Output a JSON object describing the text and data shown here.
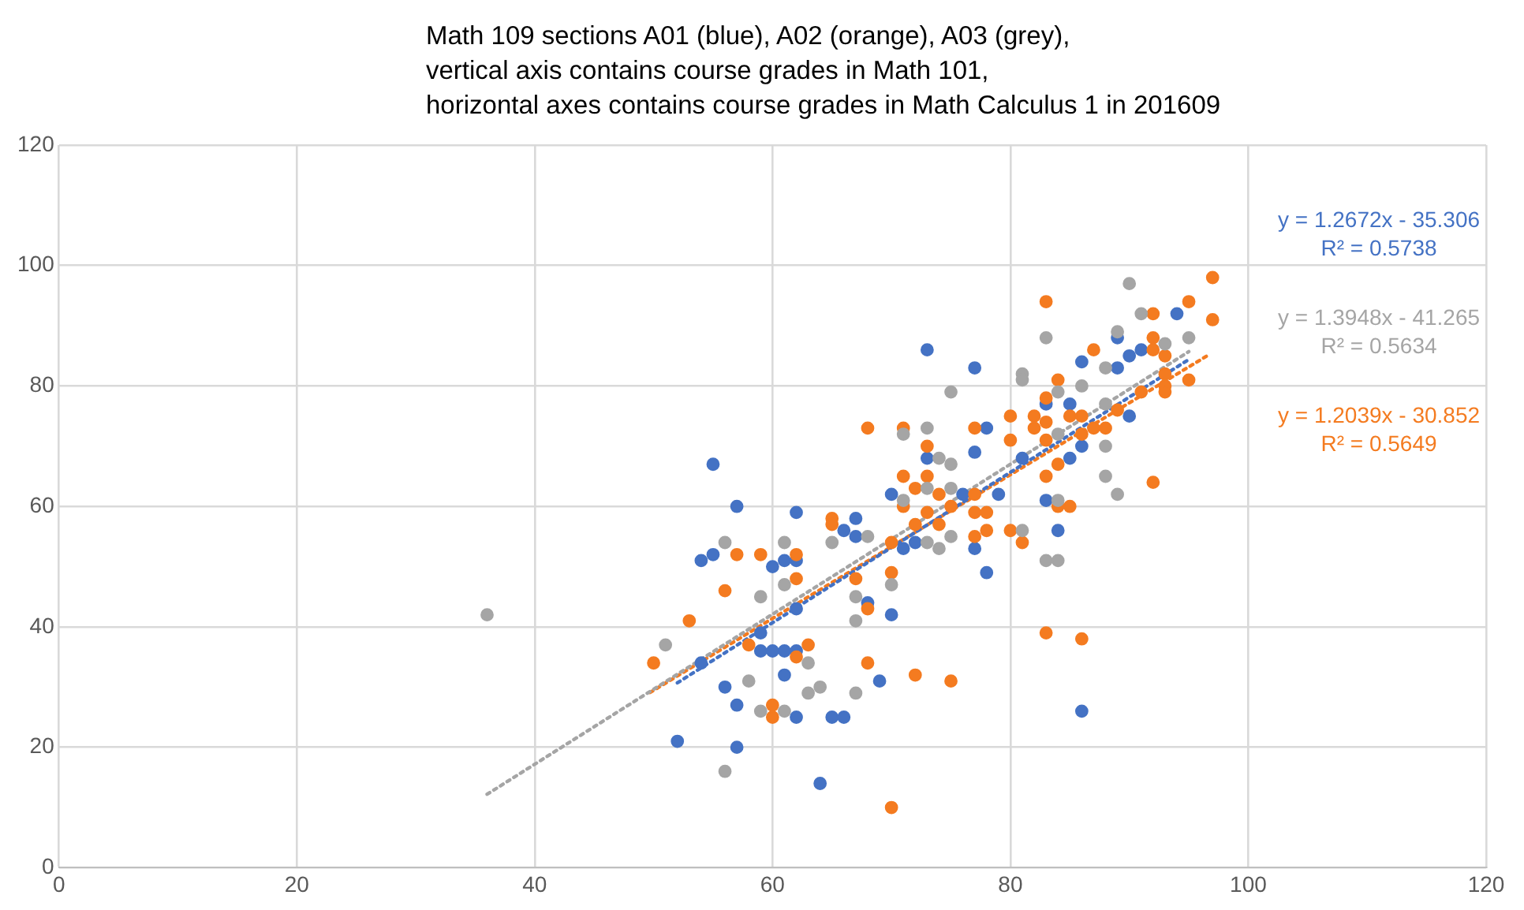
{
  "chart_data": {
    "type": "scatter",
    "title": "Math 109 sections A01 (blue), A02 (orange), A03 (grey),\nvertical axis contains course grades in Math 101,\nhorizontal axes contains course grades in Math Calculus 1 in 201609",
    "xlim": [
      0,
      120
    ],
    "xticks": [
      0,
      20,
      40,
      60,
      80,
      100,
      120
    ],
    "ylim": [
      0,
      120
    ],
    "yticks": [
      0,
      20,
      40,
      60,
      80,
      100,
      120
    ],
    "grid": true,
    "legend": false,
    "marker": "circle",
    "annotations": [
      "y = 1.2672x - 35.306\nR² = 0.5738",
      "y = 1.3948x - 41.265\nR² = 0.5634",
      "y = 1.2039x - 30.852\nR² = 0.5649"
    ],
    "series": [
      {
        "color": "#4472c4",
        "x": [
          55,
          57,
          62,
          67,
          66,
          67,
          54,
          55,
          60,
          61,
          62,
          62,
          54,
          59,
          59,
          60,
          61,
          62,
          56,
          61,
          57,
          62,
          65,
          66,
          52,
          57,
          64,
          73,
          78,
          77,
          70,
          76,
          79,
          84,
          71,
          72,
          77,
          78,
          68,
          70,
          69,
          86,
          83,
          85,
          86,
          81,
          83,
          85,
          90,
          94,
          89,
          73,
          91,
          90,
          86,
          77,
          89
        ],
        "values": [
          67,
          60,
          59,
          58,
          56,
          55,
          51,
          52,
          50,
          51,
          51,
          43,
          34,
          39,
          36,
          36,
          36,
          36,
          30,
          32,
          27,
          25,
          25,
          25,
          21,
          20,
          14,
          68,
          73,
          69,
          62,
          62,
          62,
          56,
          53,
          54,
          53,
          49,
          44,
          42,
          31,
          26,
          61,
          68,
          70,
          68,
          77,
          77,
          75,
          92,
          88,
          86,
          86,
          85,
          84,
          83,
          83
        ]
      },
      {
        "color": "#f47b20",
        "x": [
          65,
          65,
          57,
          59,
          62,
          62,
          56,
          67,
          68,
          53,
          50,
          58,
          63,
          62,
          68,
          60,
          60,
          68,
          71,
          73,
          71,
          73,
          72,
          74,
          77,
          71,
          75,
          73,
          77,
          78,
          72,
          74,
          77,
          78,
          80,
          81,
          70,
          70,
          83,
          86,
          72,
          75,
          70,
          84,
          85,
          92,
          83,
          84,
          80,
          80,
          82,
          82,
          83,
          83,
          85,
          86,
          86,
          87,
          88,
          89,
          91,
          93,
          93,
          95,
          77,
          97,
          83,
          95,
          97,
          92,
          92,
          87,
          92,
          93,
          93,
          84,
          83
        ],
        "values": [
          58,
          57,
          52,
          52,
          52,
          48,
          46,
          48,
          43,
          41,
          34,
          37,
          37,
          35,
          34,
          27,
          25,
          73,
          73,
          70,
          65,
          65,
          63,
          62,
          62,
          60,
          60,
          59,
          59,
          59,
          57,
          57,
          55,
          56,
          56,
          54,
          54,
          49,
          39,
          38,
          32,
          31,
          10,
          60,
          60,
          64,
          65,
          67,
          71,
          75,
          75,
          73,
          74,
          71,
          75,
          75,
          72,
          73,
          73,
          76,
          79,
          80,
          79,
          81,
          73,
          98,
          94,
          94,
          91,
          92,
          88,
          86,
          86,
          85,
          82,
          81,
          78
        ]
      },
      {
        "color": "#a5a5a5",
        "x": [
          36,
          56,
          61,
          65,
          61,
          59,
          67,
          67,
          51,
          63,
          58,
          63,
          64,
          67,
          59,
          61,
          56,
          75,
          71,
          73,
          74,
          75,
          73,
          75,
          71,
          75,
          81,
          68,
          73,
          74,
          70,
          83,
          84,
          84,
          88,
          89,
          88,
          84,
          88,
          90,
          91,
          83,
          89,
          95,
          93,
          88,
          81,
          81,
          86,
          84
        ],
        "values": [
          42,
          54,
          54,
          54,
          47,
          45,
          45,
          41,
          37,
          34,
          31,
          29,
          30,
          29,
          26,
          26,
          16,
          79,
          72,
          73,
          68,
          67,
          63,
          63,
          61,
          55,
          56,
          55,
          54,
          53,
          47,
          51,
          51,
          61,
          65,
          62,
          70,
          72,
          77,
          97,
          92,
          88,
          89,
          88,
          87,
          83,
          82,
          81,
          80,
          79
        ]
      },
      {
        "type": "line",
        "line_style": "dotted",
        "marker": "none",
        "color": "#4472c4",
        "x": [
          52,
          95
        ],
        "values": [
          30.7,
          84.4
        ]
      },
      {
        "type": "line",
        "line_style": "dotted",
        "marker": "none",
        "color": "#a5a5a5",
        "x": [
          36,
          95
        ],
        "values": [
          12.2,
          85.7
        ]
      },
      {
        "type": "line",
        "line_style": "dotted",
        "marker": "none",
        "color": "#f47b20",
        "x": [
          49.7,
          96.7
        ],
        "values": [
          29.1,
          85.2
        ]
      }
    ]
  }
}
